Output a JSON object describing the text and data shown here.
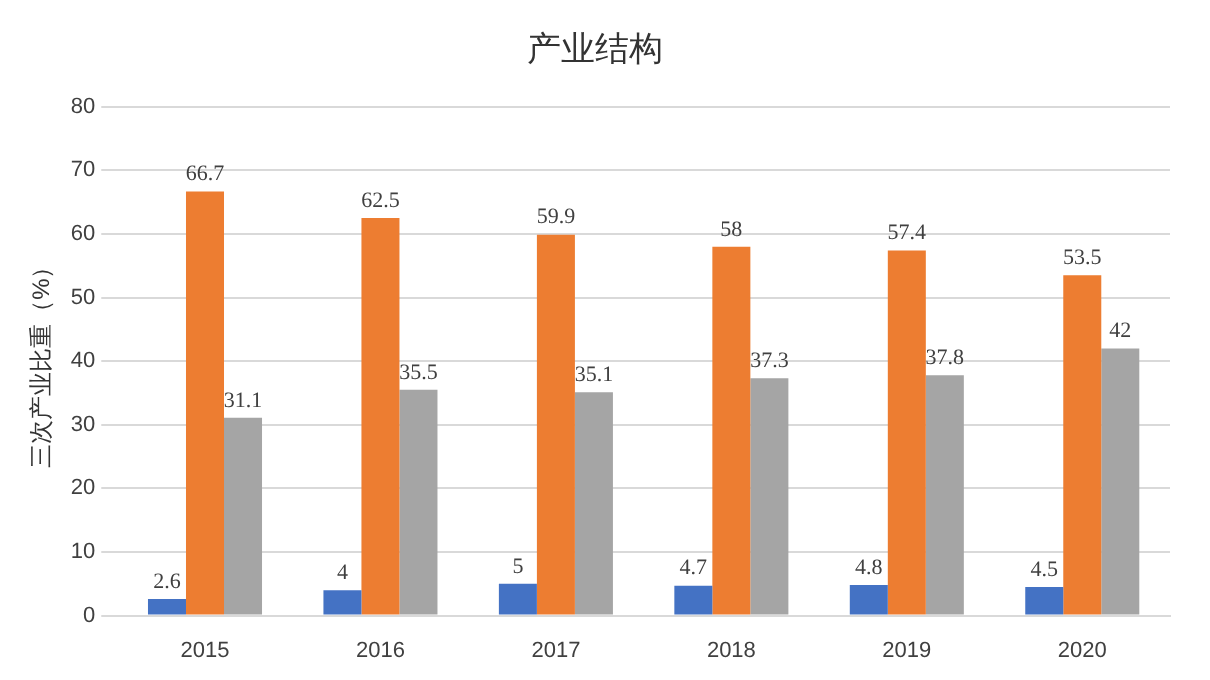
{
  "chart_data": {
    "type": "bar",
    "title": "产业结构",
    "ylabel": "三次产业比重（%）",
    "categories": [
      "2015",
      "2016",
      "2017",
      "2018",
      "2019",
      "2020"
    ],
    "series": [
      {
        "color": "#4472c4",
        "values": [
          2.6,
          4,
          5,
          4.7,
          4.8,
          4.5
        ]
      },
      {
        "color": "#ed7d31",
        "values": [
          66.7,
          62.5,
          59.9,
          58,
          57.4,
          53.5
        ]
      },
      {
        "color": "#a5a5a5",
        "values": [
          31.1,
          35.5,
          35.1,
          37.3,
          37.8,
          42
        ]
      }
    ],
    "ylim": [
      0,
      80
    ],
    "yticks": [
      0,
      10,
      20,
      30,
      40,
      50,
      60,
      70,
      80
    ],
    "grid": "y",
    "legend": false,
    "data_labels": true
  }
}
